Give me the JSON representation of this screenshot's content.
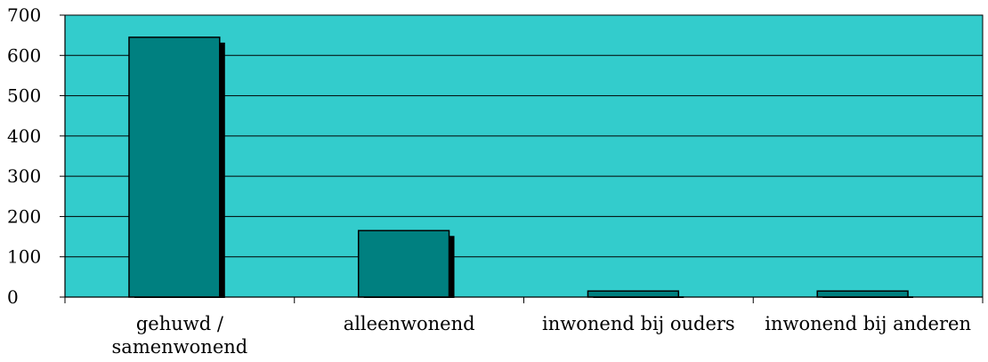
{
  "chart_data": {
    "type": "bar",
    "title": "",
    "xlabel": "",
    "ylabel": "",
    "categories": [
      [
        "gehuwd /",
        "samenwonend"
      ],
      [
        "alleenwonend"
      ],
      [
        "inwonend bij ouders"
      ],
      [
        "inwonend bij anderen"
      ]
    ],
    "values": [
      645,
      165,
      15,
      15
    ],
    "ylim": [
      0,
      700
    ],
    "yticks": [
      0,
      100,
      200,
      300,
      400,
      500,
      600,
      700
    ],
    "grid": true,
    "legend": "none",
    "colors": {
      "plot_background": "#33CCCC",
      "bar_fill": "#008080",
      "bar_shadow": "#000000",
      "axis": "#000000",
      "gridline": "#000000"
    }
  }
}
